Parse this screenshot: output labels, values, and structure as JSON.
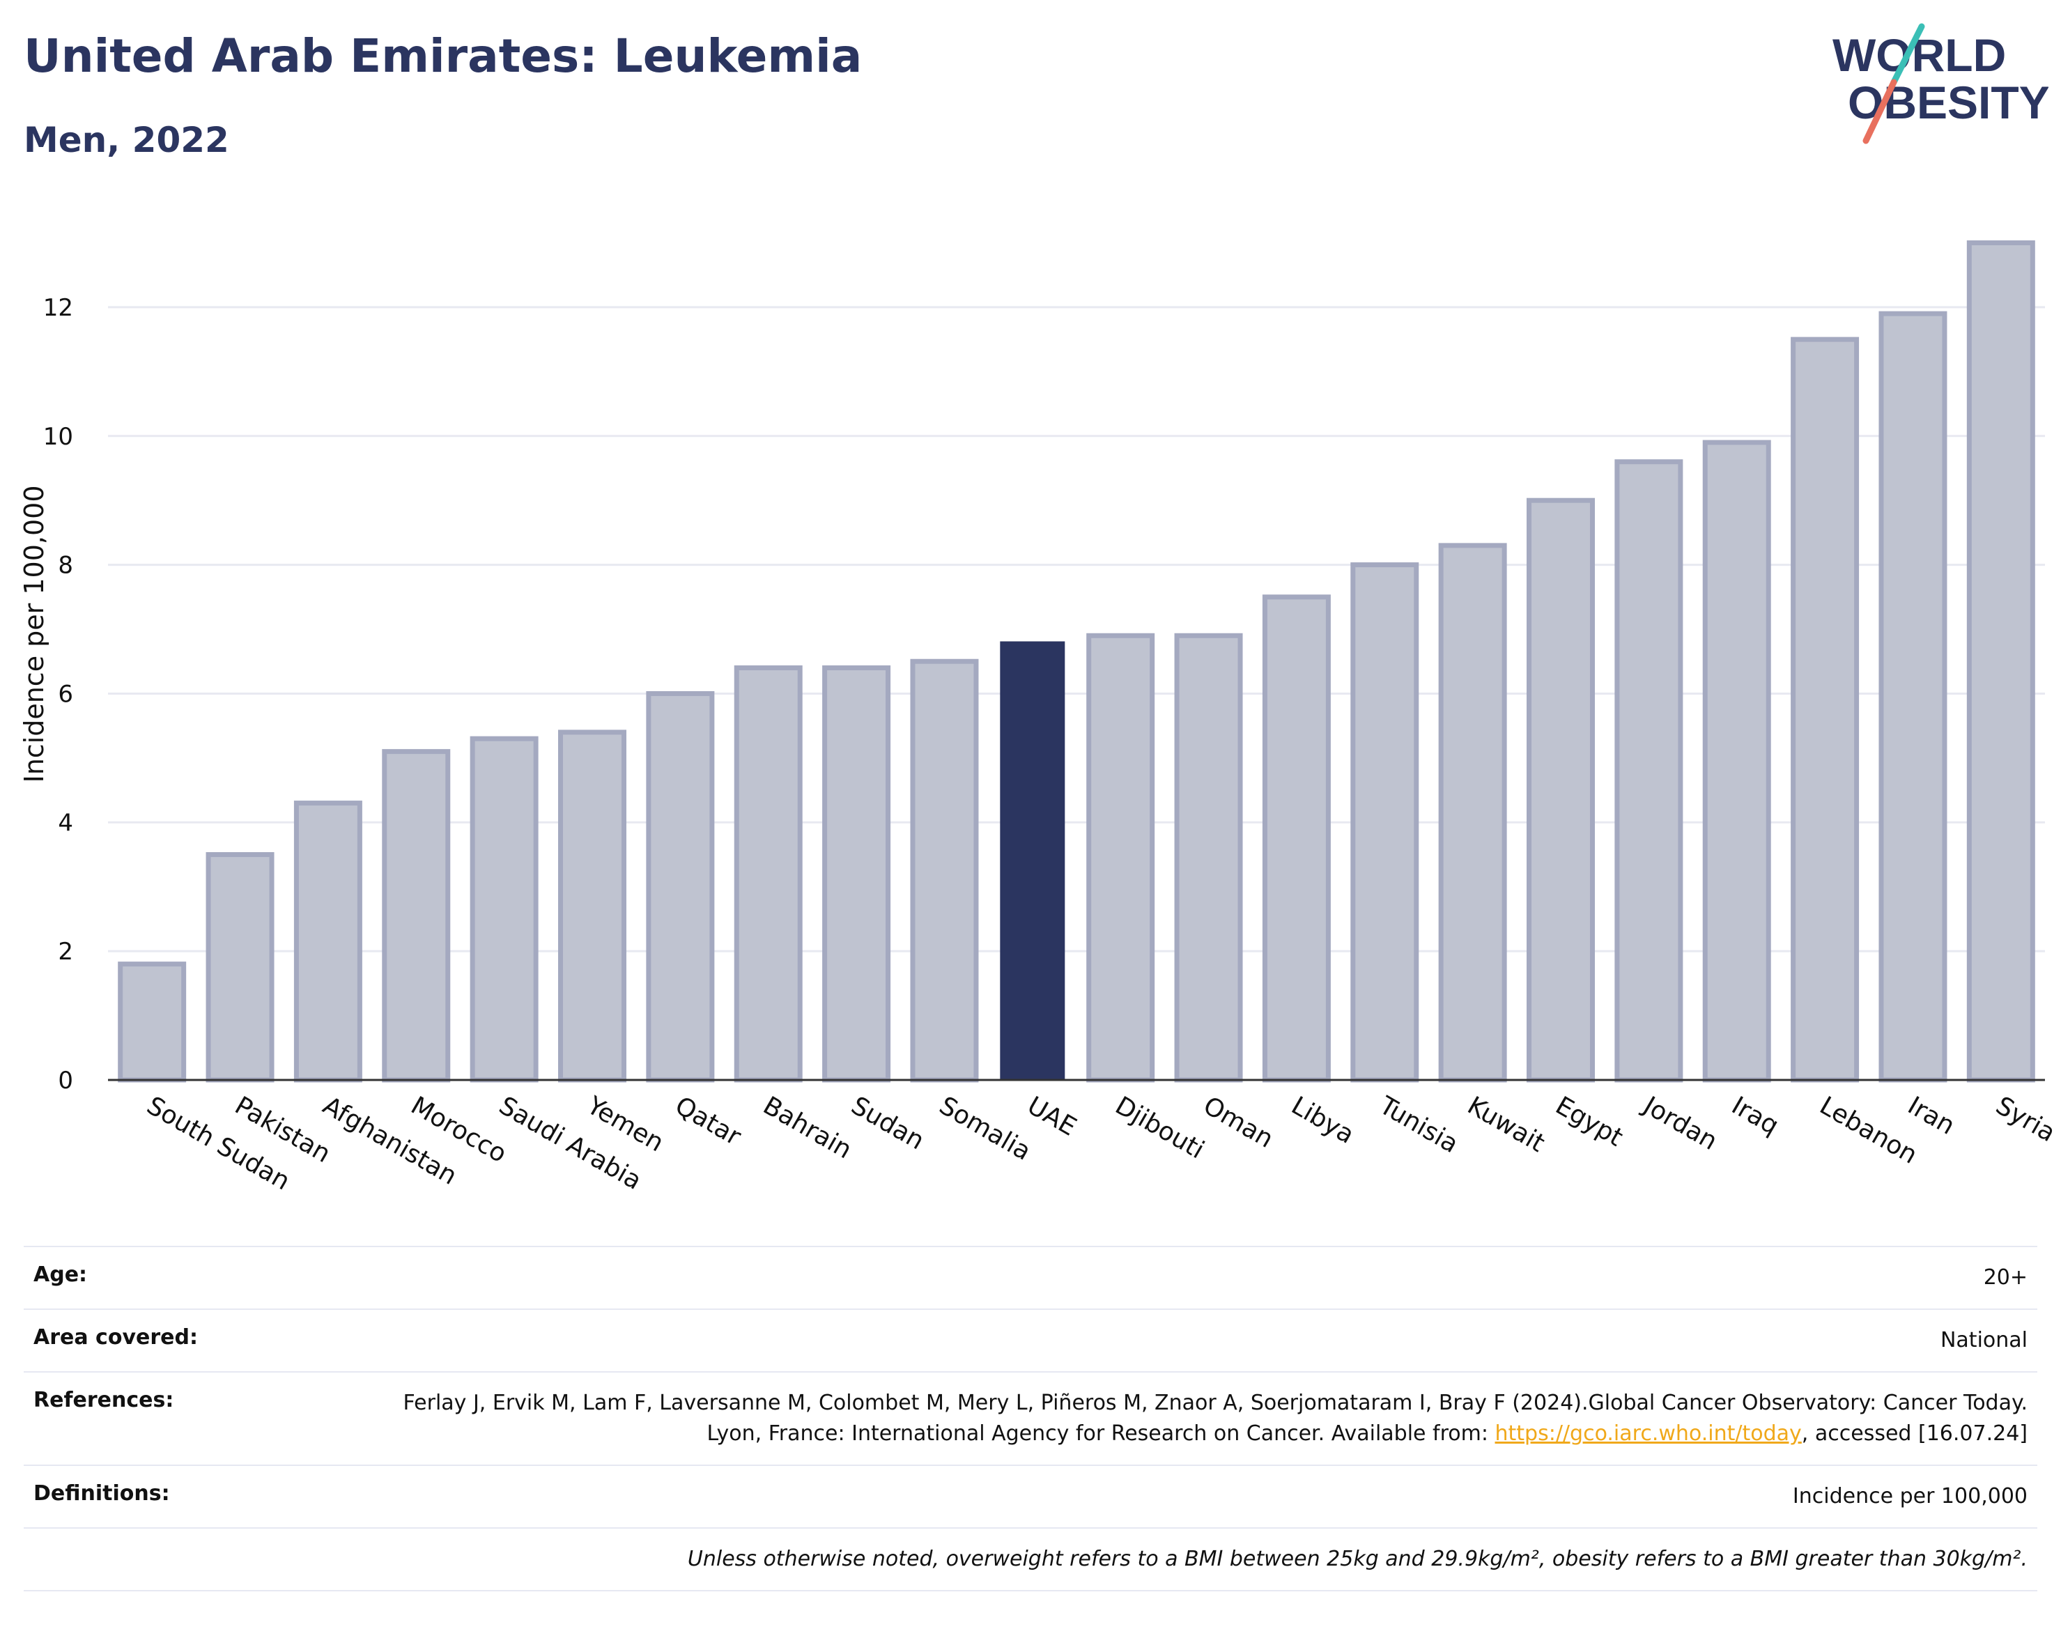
{
  "header": {
    "title": "United Arab Emirates: Leukemia",
    "subtitle": "Men, 2022"
  },
  "logo": {
    "line1": "WORLD",
    "line2": "OBESITY",
    "colors": {
      "text": "#2b3560",
      "slash_top": "#3bbfb6",
      "slash_bottom": "#e8705e"
    }
  },
  "chart_data": {
    "type": "bar",
    "categories": [
      "South Sudan",
      "Pakistan",
      "Afghanistan",
      "Morocco",
      "Saudi Arabia",
      "Yemen",
      "Qatar",
      "Bahrain",
      "Sudan",
      "Somalia",
      "UAE",
      "Djibouti",
      "Oman",
      "Libya",
      "Tunisia",
      "Kuwait",
      "Egypt",
      "Jordan",
      "Iraq",
      "Lebanon",
      "Iran",
      "Syria"
    ],
    "values": [
      1.8,
      3.5,
      4.3,
      5.1,
      5.3,
      5.4,
      6.0,
      6.4,
      6.4,
      6.5,
      6.8,
      6.9,
      6.9,
      7.5,
      8.0,
      8.3,
      9.0,
      9.6,
      9.9,
      11.5,
      11.9,
      13.0
    ],
    "highlight": "UAE",
    "ylabel": "Incidence per 100,000",
    "ylim": [
      0,
      13.2
    ],
    "yticks": [
      0,
      2,
      4,
      6,
      8,
      10,
      12
    ],
    "grid": true,
    "colors": {
      "bar": "#bfc3d0",
      "bar_outline": "#a4a9c0",
      "highlight": "#2b3560",
      "grid": "#e8e9f1",
      "axis": "#333333"
    }
  },
  "info": {
    "age_label": "Age:",
    "age_value": "20+",
    "area_label": "Area covered:",
    "area_value": "National",
    "references_label": "References:",
    "references_text_1": "Ferlay J, Ervik M, Lam F, Laversanne M, Colombet M, Mery L, Piñeros M, Znaor A, Soerjomataram I, Bray F (2024).Global Cancer Observatory: Cancer Today. Lyon, France: International Agency for Research on Cancer. Available from: ",
    "references_link": "https://gco.iarc.who.int/today",
    "references_text_2": ", accessed [16.07.24]",
    "definitions_label": "Definitions:",
    "definitions_value": "Incidence per 100,000",
    "footnote": "Unless otherwise noted, overweight refers to a BMI between 25kg and 29.9kg/m², obesity refers to a BMI greater than 30kg/m²."
  }
}
